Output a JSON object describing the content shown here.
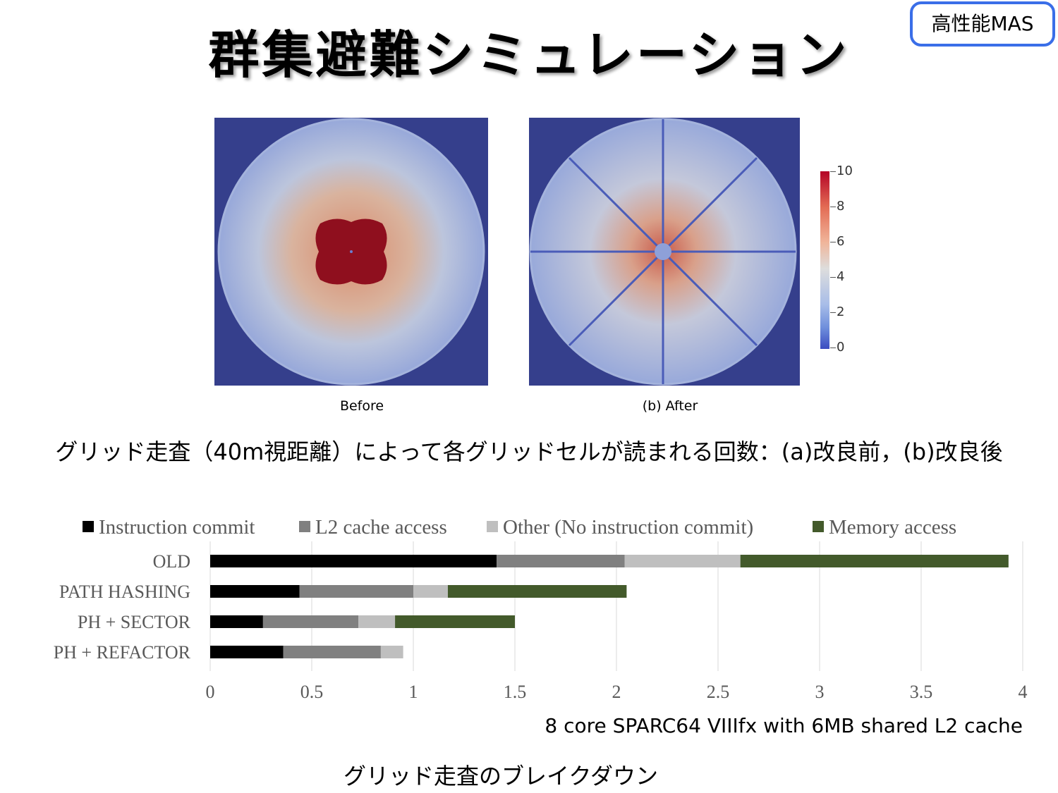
{
  "badge": "高性能MAS",
  "title": "群集避難シミュレーション",
  "heatmaps": {
    "panels": [
      {
        "caption": "Before"
      },
      {
        "caption": "(b) After"
      }
    ],
    "colorbar": {
      "ticks": [
        "10",
        "8",
        "6",
        "4",
        "2",
        "0"
      ],
      "min": 0,
      "max": 10,
      "colors": {
        "low": "#3b4cc0",
        "mid": "#dddddd",
        "high": "#b40426"
      }
    },
    "caption": "グリッド走査（40m視距離）によって各グリッドセルが読まれる回数：(a)改良前，(b)改良後"
  },
  "chart_data": {
    "type": "bar",
    "orientation": "horizontal",
    "stacked": true,
    "categories": [
      "OLD",
      "PATH HASHING",
      "PH + SECTOR",
      "PH + REFACTOR"
    ],
    "series": [
      {
        "name": "Instruction commit",
        "color": "#000000",
        "values": [
          1.41,
          0.44,
          0.26,
          0.36
        ]
      },
      {
        "name": "L2 cache access",
        "color": "#808080",
        "values": [
          0.63,
          0.56,
          0.47,
          0.48
        ]
      },
      {
        "name": "Other (No instruction commit)",
        "color": "#bfbfbf",
        "values": [
          0.57,
          0.17,
          0.18,
          0.11
        ]
      },
      {
        "name": "Memory access",
        "color": "#435a2b",
        "values": [
          1.32,
          0.88,
          0.59,
          0.0
        ]
      }
    ],
    "xlim": [
      0,
      4
    ],
    "xticks": [
      "0",
      "0.5",
      "1",
      "1.5",
      "2",
      "2.5",
      "3",
      "3.5",
      "4"
    ],
    "grid": true,
    "legend": "top"
  },
  "machine_note": "8 core SPARC64 VIIIfx with 6MB shared L2 cache",
  "breakdown_caption": "グリッド走査のブレイクダウン"
}
